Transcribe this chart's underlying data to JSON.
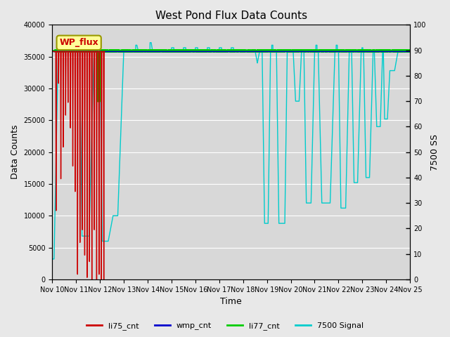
{
  "title": "West Pond Flux Data Counts",
  "xlabel": "Time",
  "ylabel_left": "Data Counts",
  "ylabel_right": "7500 SS",
  "xlim": [
    0,
    15
  ],
  "ylim_left": [
    0,
    40000
  ],
  "ylim_right": [
    0,
    100
  ],
  "fig_facecolor": "#e8e8e8",
  "axes_facecolor": "#d8d8d8",
  "legend_items": [
    "li75_cnt",
    "wmp_cnt",
    "li77_cnt",
    "7500 Signal"
  ],
  "legend_colors": [
    "#cc0000",
    "#0000cc",
    "#00cc00",
    "#00cccc"
  ],
  "annotation_text": "WP_flux",
  "annotation_color": "#cc0000",
  "annotation_bg": "#ffff99",
  "annotation_edge": "#999900",
  "x_tick_labels": [
    "Nov 10",
    "Nov 11",
    "Nov 12",
    "Nov 13",
    "Nov 14",
    "Nov 15",
    "Nov 16",
    "Nov 17",
    "Nov 18",
    "Nov 19",
    "Nov 20",
    "Nov 21",
    "Nov 22",
    "Nov 23",
    "Nov 24",
    "Nov 25"
  ],
  "x_tick_positions": [
    0,
    1,
    2,
    3,
    4,
    5,
    6,
    7,
    8,
    9,
    10,
    11,
    12,
    13,
    14,
    15
  ],
  "yticks_left": [
    0,
    5000,
    10000,
    15000,
    20000,
    25000,
    30000,
    35000,
    40000
  ],
  "yticks_right": [
    0,
    10,
    20,
    30,
    40,
    50,
    60,
    70,
    80,
    90,
    100
  ],
  "li77_value": 35900,
  "wmp_value": 35800,
  "title_fontsize": 11,
  "axis_label_fontsize": 9,
  "tick_fontsize": 7,
  "grid_color": "#ffffff",
  "right_tick_style": "dash"
}
